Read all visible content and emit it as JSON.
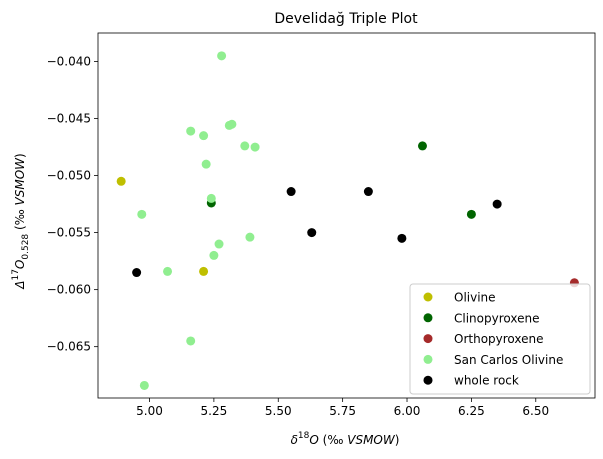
{
  "chart_data": {
    "type": "scatter",
    "title": "Develidağ Triple Plot",
    "xlabel": {
      "main": "δ",
      "sup": "18",
      "var": "O",
      "paren": "(‰ ",
      "unit": "VSMOW",
      "close": ")"
    },
    "ylabel": {
      "main": "Δ",
      "sup": "17",
      "var": "O",
      "sub": "0.528",
      "paren": " (‰ ",
      "unit": "VSMOW",
      "close": ")"
    },
    "xlim": [
      4.8,
      6.73
    ],
    "ylim": [
      -0.0695,
      -0.0375
    ],
    "xticks": [
      5.0,
      5.25,
      5.5,
      5.75,
      6.0,
      6.25,
      6.5
    ],
    "xtick_labels": [
      "5.00",
      "5.25",
      "5.50",
      "5.75",
      "6.00",
      "6.25",
      "6.50"
    ],
    "yticks": [
      -0.065,
      -0.06,
      -0.055,
      -0.05,
      -0.045,
      -0.04
    ],
    "ytick_labels": [
      "−0.065",
      "−0.060",
      "−0.055",
      "−0.050",
      "−0.045",
      "−0.040"
    ],
    "grid": false,
    "legend_position": "lower-right",
    "series": [
      {
        "name": "Olivine",
        "color": "#bfbf00",
        "points": [
          [
            4.89,
            -0.0505
          ],
          [
            5.21,
            -0.0584
          ]
        ]
      },
      {
        "name": "Clinopyroxene",
        "color": "#006400",
        "points": [
          [
            5.24,
            -0.0524
          ],
          [
            6.06,
            -0.0474
          ],
          [
            6.25,
            -0.0534
          ]
        ]
      },
      {
        "name": "Orthopyroxene",
        "color": "#a52a2a",
        "points": [
          [
            6.65,
            -0.0594
          ]
        ]
      },
      {
        "name": "San Carlos Olivine",
        "color": "#90ee90",
        "points": [
          [
            5.28,
            -0.0395
          ],
          [
            5.16,
            -0.0461
          ],
          [
            5.21,
            -0.0465
          ],
          [
            5.31,
            -0.0456
          ],
          [
            5.32,
            -0.0455
          ],
          [
            5.37,
            -0.0474
          ],
          [
            5.41,
            -0.0475
          ],
          [
            5.22,
            -0.049
          ],
          [
            5.24,
            -0.052
          ],
          [
            4.97,
            -0.0534
          ],
          [
            5.39,
            -0.0554
          ],
          [
            5.27,
            -0.056
          ],
          [
            5.25,
            -0.057
          ],
          [
            5.07,
            -0.0584
          ],
          [
            5.16,
            -0.0645
          ],
          [
            4.98,
            -0.0684
          ]
        ]
      },
      {
        "name": "whole rock",
        "color": "#000000",
        "points": [
          [
            4.95,
            -0.0585
          ],
          [
            5.55,
            -0.0514
          ],
          [
            5.63,
            -0.055
          ],
          [
            5.85,
            -0.0514
          ],
          [
            5.98,
            -0.0555
          ],
          [
            6.35,
            -0.0525
          ]
        ]
      }
    ]
  }
}
